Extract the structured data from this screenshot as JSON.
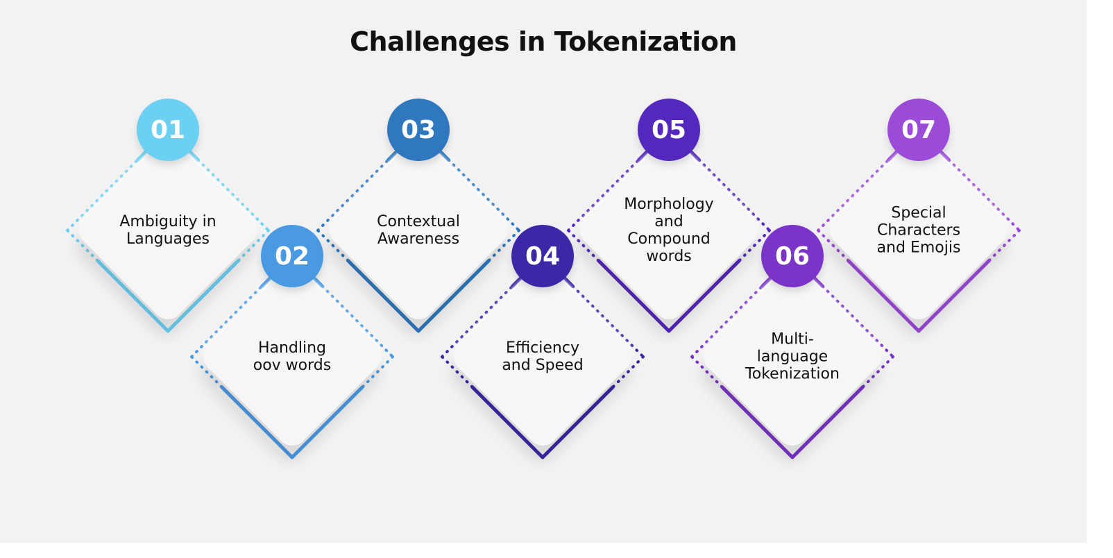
{
  "title": "Challenges in Tokenization",
  "items": [
    {
      "number": "01",
      "label": "Ambiguity in\nLanguages",
      "color": "#6bd0f2"
    },
    {
      "number": "02",
      "label": "Handling\noov words",
      "color": "#4a9ae3"
    },
    {
      "number": "03",
      "label": "Contextual\nAwareness",
      "color": "#2f78bf"
    },
    {
      "number": "04",
      "label": "Efficiency\nand Speed",
      "color": "#3b28a6"
    },
    {
      "number": "05",
      "label": "Morphology\nand\nCompound\nwords",
      "color": "#5428bd"
    },
    {
      "number": "06",
      "label": "Multi-\nlanguage\nTokenization",
      "color": "#7b34c8"
    },
    {
      "number": "07",
      "label": "Special\nCharacters\nand Emojis",
      "color": "#9c4ad8"
    }
  ]
}
